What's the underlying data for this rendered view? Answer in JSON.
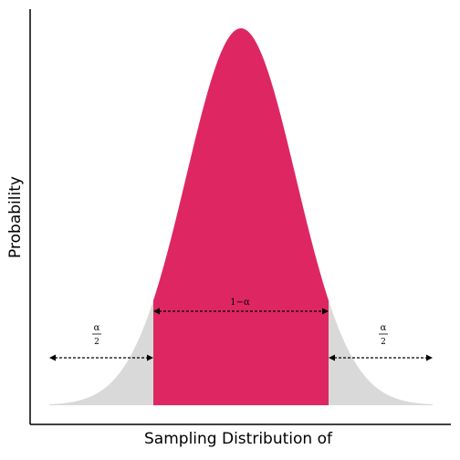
{
  "chart_data": {
    "type": "area",
    "distribution": "normal",
    "xlabel": "Sampling Distribution of",
    "ylabel": "Probability",
    "x_range": [
      -3.5,
      3.5
    ],
    "critical_values": [
      -1.6,
      1.6
    ],
    "colors": {
      "center": "#DE2762",
      "tails": "#D9D9D9",
      "axis": "#000000"
    },
    "annotations": {
      "center_label": "1−α",
      "tail_numerator": "α",
      "tail_denominator": "2"
    }
  }
}
